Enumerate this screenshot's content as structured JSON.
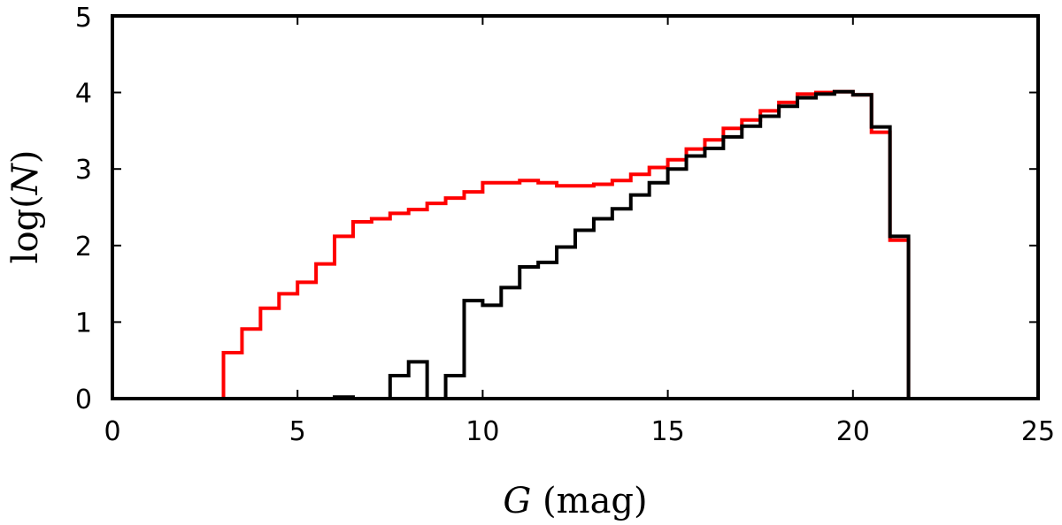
{
  "chart_data": {
    "type": "step",
    "xlabel_var": "G",
    "xlabel_unit": "(mag)",
    "ylabel_fn": "log(",
    "ylabel_var": "N",
    "ylabel_close": ")",
    "xlim": [
      0,
      25
    ],
    "ylim": [
      0,
      5
    ],
    "xticks": [
      "0",
      "5",
      "10",
      "15",
      "20",
      "25"
    ],
    "yticks": [
      "0",
      "1",
      "2",
      "3",
      "4",
      "5"
    ],
    "bin_width": 0.5,
    "grid": false,
    "series": [
      {
        "color": "#ff0000",
        "bins": [
          {
            "x0": 3.0,
            "y": 0.6
          },
          {
            "x0": 3.5,
            "y": 0.91
          },
          {
            "x0": 4.0,
            "y": 1.18
          },
          {
            "x0": 4.5,
            "y": 1.37
          },
          {
            "x0": 5.0,
            "y": 1.52
          },
          {
            "x0": 5.5,
            "y": 1.76
          },
          {
            "x0": 6.0,
            "y": 2.12
          },
          {
            "x0": 6.5,
            "y": 2.31
          },
          {
            "x0": 7.0,
            "y": 2.35
          },
          {
            "x0": 7.5,
            "y": 2.42
          },
          {
            "x0": 8.0,
            "y": 2.47
          },
          {
            "x0": 8.5,
            "y": 2.55
          },
          {
            "x0": 9.0,
            "y": 2.62
          },
          {
            "x0": 9.5,
            "y": 2.7
          },
          {
            "x0": 10.0,
            "y": 2.82
          },
          {
            "x0": 10.5,
            "y": 2.82
          },
          {
            "x0": 11.0,
            "y": 2.85
          },
          {
            "x0": 11.5,
            "y": 2.82
          },
          {
            "x0": 12.0,
            "y": 2.78
          },
          {
            "x0": 12.5,
            "y": 2.78
          },
          {
            "x0": 13.0,
            "y": 2.8
          },
          {
            "x0": 13.5,
            "y": 2.85
          },
          {
            "x0": 14.0,
            "y": 2.93
          },
          {
            "x0": 14.5,
            "y": 3.02
          },
          {
            "x0": 15.0,
            "y": 3.12
          },
          {
            "x0": 15.5,
            "y": 3.26
          },
          {
            "x0": 16.0,
            "y": 3.38
          },
          {
            "x0": 16.5,
            "y": 3.53
          },
          {
            "x0": 17.0,
            "y": 3.64
          },
          {
            "x0": 17.5,
            "y": 3.76
          },
          {
            "x0": 18.0,
            "y": 3.87
          },
          {
            "x0": 18.5,
            "y": 3.98
          },
          {
            "x0": 19.0,
            "y": 4.0
          },
          {
            "x0": 19.5,
            "y": 4.01
          },
          {
            "x0": 20.0,
            "y": 3.97
          },
          {
            "x0": 20.5,
            "y": 3.48
          },
          {
            "x0": 21.0,
            "y": 2.07
          }
        ]
      },
      {
        "color": "#000000",
        "bins": [
          {
            "x0": 6.0,
            "y": 0.02
          },
          {
            "x0": 6.5,
            "y": 0.0
          },
          {
            "x0": 7.0,
            "y": 0.0
          },
          {
            "x0": 7.5,
            "y": 0.3
          },
          {
            "x0": 8.0,
            "y": 0.48
          },
          {
            "x0": 8.5,
            "y": 0.0
          },
          {
            "x0": 9.0,
            "y": 0.3
          },
          {
            "x0": 9.5,
            "y": 1.28
          },
          {
            "x0": 10.0,
            "y": 1.22
          },
          {
            "x0": 10.5,
            "y": 1.45
          },
          {
            "x0": 11.0,
            "y": 1.72
          },
          {
            "x0": 11.5,
            "y": 1.78
          },
          {
            "x0": 12.0,
            "y": 1.98
          },
          {
            "x0": 12.5,
            "y": 2.2
          },
          {
            "x0": 13.0,
            "y": 2.35
          },
          {
            "x0": 13.5,
            "y": 2.48
          },
          {
            "x0": 14.0,
            "y": 2.66
          },
          {
            "x0": 14.5,
            "y": 2.82
          },
          {
            "x0": 15.0,
            "y": 3.0
          },
          {
            "x0": 15.5,
            "y": 3.17
          },
          {
            "x0": 16.0,
            "y": 3.27
          },
          {
            "x0": 16.5,
            "y": 3.42
          },
          {
            "x0": 17.0,
            "y": 3.56
          },
          {
            "x0": 17.5,
            "y": 3.69
          },
          {
            "x0": 18.0,
            "y": 3.82
          },
          {
            "x0": 18.5,
            "y": 3.93
          },
          {
            "x0": 19.0,
            "y": 3.98
          },
          {
            "x0": 19.5,
            "y": 4.01
          },
          {
            "x0": 20.0,
            "y": 3.97
          },
          {
            "x0": 20.5,
            "y": 3.55
          },
          {
            "x0": 21.0,
            "y": 2.12
          }
        ]
      }
    ]
  }
}
